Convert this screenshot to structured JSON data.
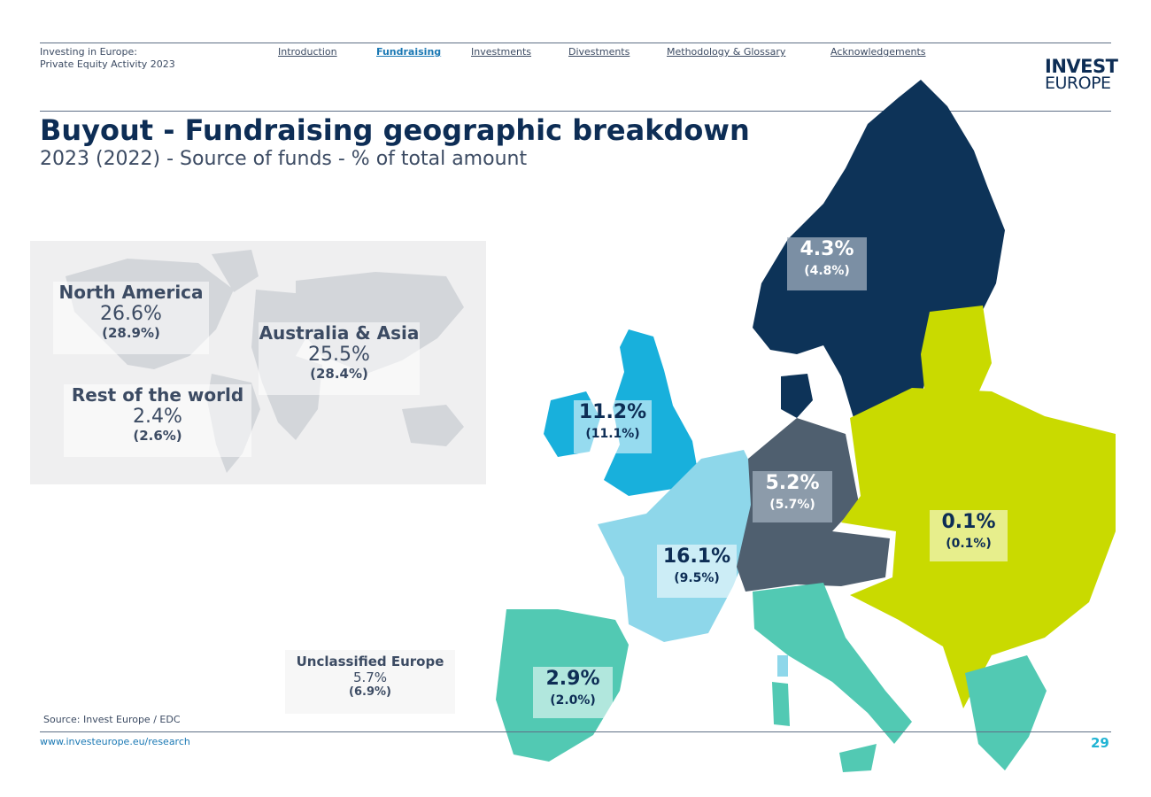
{
  "header": {
    "doc_title_line1": "Investing in Europe:",
    "doc_title_line2": "Private Equity Activity 2023",
    "nav": [
      {
        "label": "Introduction",
        "active": false
      },
      {
        "label": "Fundraising",
        "active": true
      },
      {
        "label": "Investments",
        "active": false
      },
      {
        "label": "Divestments",
        "active": false
      },
      {
        "label": "Methodology & Glossary",
        "active": false
      },
      {
        "label": "Acknowledgements",
        "active": false
      }
    ],
    "logo_line1": "INVEST",
    "logo_line2": "EUROPE"
  },
  "page": {
    "title": "Buyout - Fundraising geographic breakdown",
    "subtitle": "2023 (2022) - Source of funds - % of total amount"
  },
  "world": {
    "north_america": {
      "name": "North America",
      "value": "26.6%",
      "prev": "(28.9%)"
    },
    "asia": {
      "name": "Australia & Asia",
      "value": "25.5%",
      "prev": "(28.4%)"
    },
    "rest": {
      "name": "Rest of the world",
      "value": "2.4%",
      "prev": "(2.6%)"
    }
  },
  "regions": {
    "nordics": {
      "value": "4.3%",
      "prev": "(4.8%)"
    },
    "uk_ireland": {
      "value": "11.2%",
      "prev": "(11.1%)"
    },
    "dach": {
      "value": "5.2%",
      "prev": "(5.7%)"
    },
    "france_benelux": {
      "value": "16.1%",
      "prev": "(9.5%)"
    },
    "cee": {
      "value": "0.1%",
      "prev": "(0.1%)"
    },
    "southern_europe": {
      "value": "2.9%",
      "prev": "(2.0%)"
    },
    "unclassified": {
      "name": "Unclassified Europe",
      "value": "5.7%",
      "prev": "(6.9%)"
    }
  },
  "colors": {
    "nordics": "#0d3358",
    "uk_ireland": "#18b0dc",
    "dach": "#4f5f6f",
    "france_benelux": "#8ed7ea",
    "cee": "#c9da00",
    "southern": "#52c9b3",
    "world_land": "#d3d6da"
  },
  "footer": {
    "source": "Source: Invest Europe / EDC",
    "url": "www.investeurope.eu/research",
    "page_number": "29"
  }
}
